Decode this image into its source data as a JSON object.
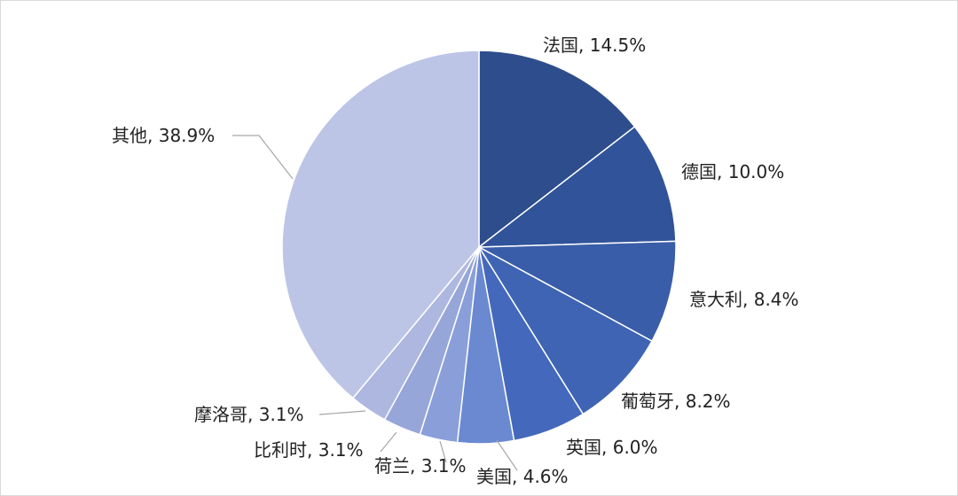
{
  "chart_data": {
    "type": "pie",
    "title": "",
    "labels": [
      "法国",
      "德国",
      "意大利",
      "葡萄牙",
      "英国",
      "美国",
      "荷兰",
      "比利时",
      "摩洛哥",
      "其他"
    ],
    "values": [
      14.5,
      10.0,
      8.4,
      8.2,
      6.0,
      4.6,
      3.1,
      3.1,
      3.1,
      38.9
    ],
    "data_labels": [
      "法国, 14.5%",
      "德国, 10.0%",
      "意大利, 8.4%",
      "葡萄牙, 8.2%",
      "英国, 6.0%",
      "美国, 4.6%",
      "荷兰, 3.1%",
      "比利时, 3.1%",
      "摩洛哥, 3.1%",
      "其他, 38.9%"
    ],
    "colors": [
      "#2e4d8c",
      "#30539a",
      "#3a5da9",
      "#3f64b4",
      "#4468bb",
      "#6a89d1",
      "#8a9fd9",
      "#97a6d8",
      "#adb7e0",
      "#bcc5e6"
    ],
    "start_angle": "12 o'clock",
    "direction": "clockwise",
    "legend": "none"
  }
}
